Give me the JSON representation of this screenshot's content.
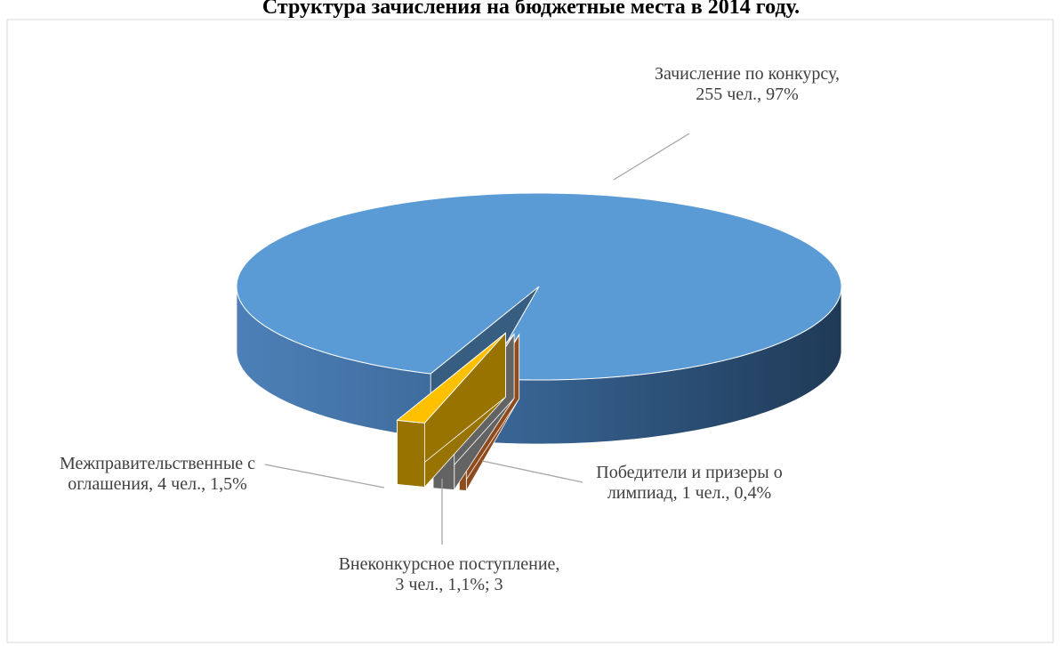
{
  "chart_data": {
    "type": "pie3d",
    "title": "Структура зачисления на бюджетные места в 2014 году.",
    "labels": [
      "Зачисление по конкурсу, 255 чел., 97%",
      "Победители и призеры олимпиад, 1 чел., 0,4%",
      "Внеконкурсное поступление, 3 чел., 1,1%; 3",
      "Межправительственные соглашения, 4 чел., 1,5%"
    ],
    "values": [
      255,
      1,
      3,
      4
    ],
    "colors": [
      "#5b9bd5",
      "#ed7d31",
      "#a5a5a5",
      "#ffc000"
    ]
  }
}
